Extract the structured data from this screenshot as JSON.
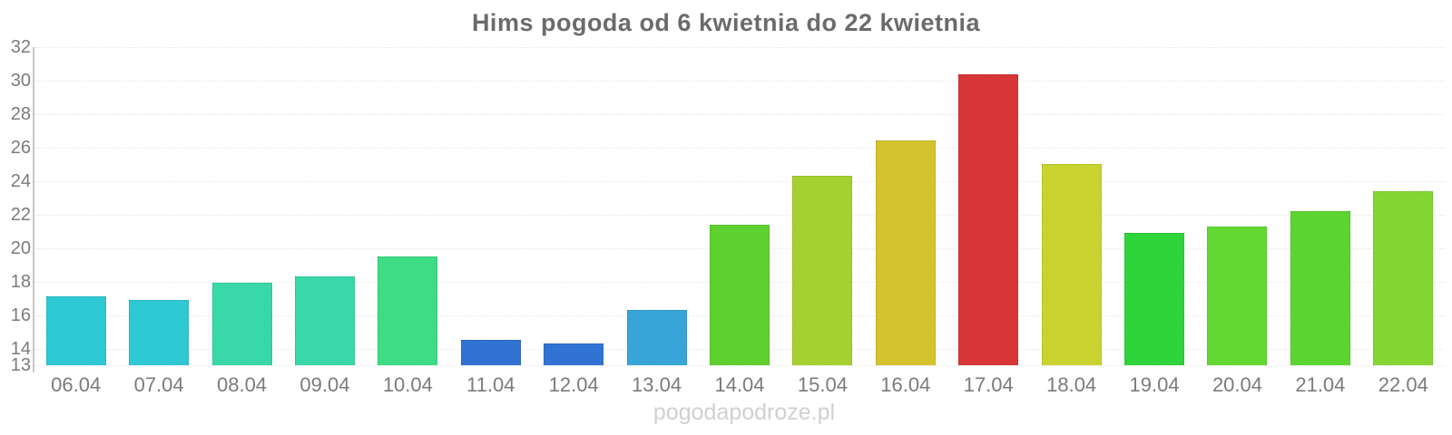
{
  "chart_data": {
    "type": "bar",
    "title": "Hims pogoda od 6 kwietnia do 22 kwietnia",
    "categories": [
      "06.04",
      "07.04",
      "08.04",
      "09.04",
      "10.04",
      "11.04",
      "12.04",
      "13.04",
      "14.04",
      "15.04",
      "16.04",
      "17.04",
      "18.04",
      "19.04",
      "20.04",
      "21.04",
      "22.04"
    ],
    "values": [
      17.1,
      16.9,
      17.9,
      18.3,
      19.5,
      14.5,
      14.3,
      16.3,
      21.4,
      24.3,
      26.4,
      30.4,
      25.0,
      20.9,
      21.3,
      22.2,
      23.4
    ],
    "bar_colors": [
      "#2fc8d5",
      "#2fc8d5",
      "#38d8a8",
      "#38d8a8",
      "#3edc84",
      "#3173d3",
      "#3173d3",
      "#38a5d8",
      "#5ed02f",
      "#a6d02f",
      "#d4c32e",
      "#d83636",
      "#c9d32f",
      "#2ed43a",
      "#63d832",
      "#5dd530",
      "#84d733"
    ],
    "xlabel": "",
    "ylabel": "",
    "ylim": [
      13,
      32
    ],
    "y_tick_labels": [
      "32",
      "30",
      "28",
      "26",
      "24",
      "22",
      "20",
      "18",
      "16",
      "14",
      "13"
    ],
    "grid": "horizontal-dotted",
    "legend": "none",
    "axis_text_color": "#7b7b7b",
    "title_color": "#6b6b6b"
  },
  "watermark": "pogodapodroze.pl"
}
